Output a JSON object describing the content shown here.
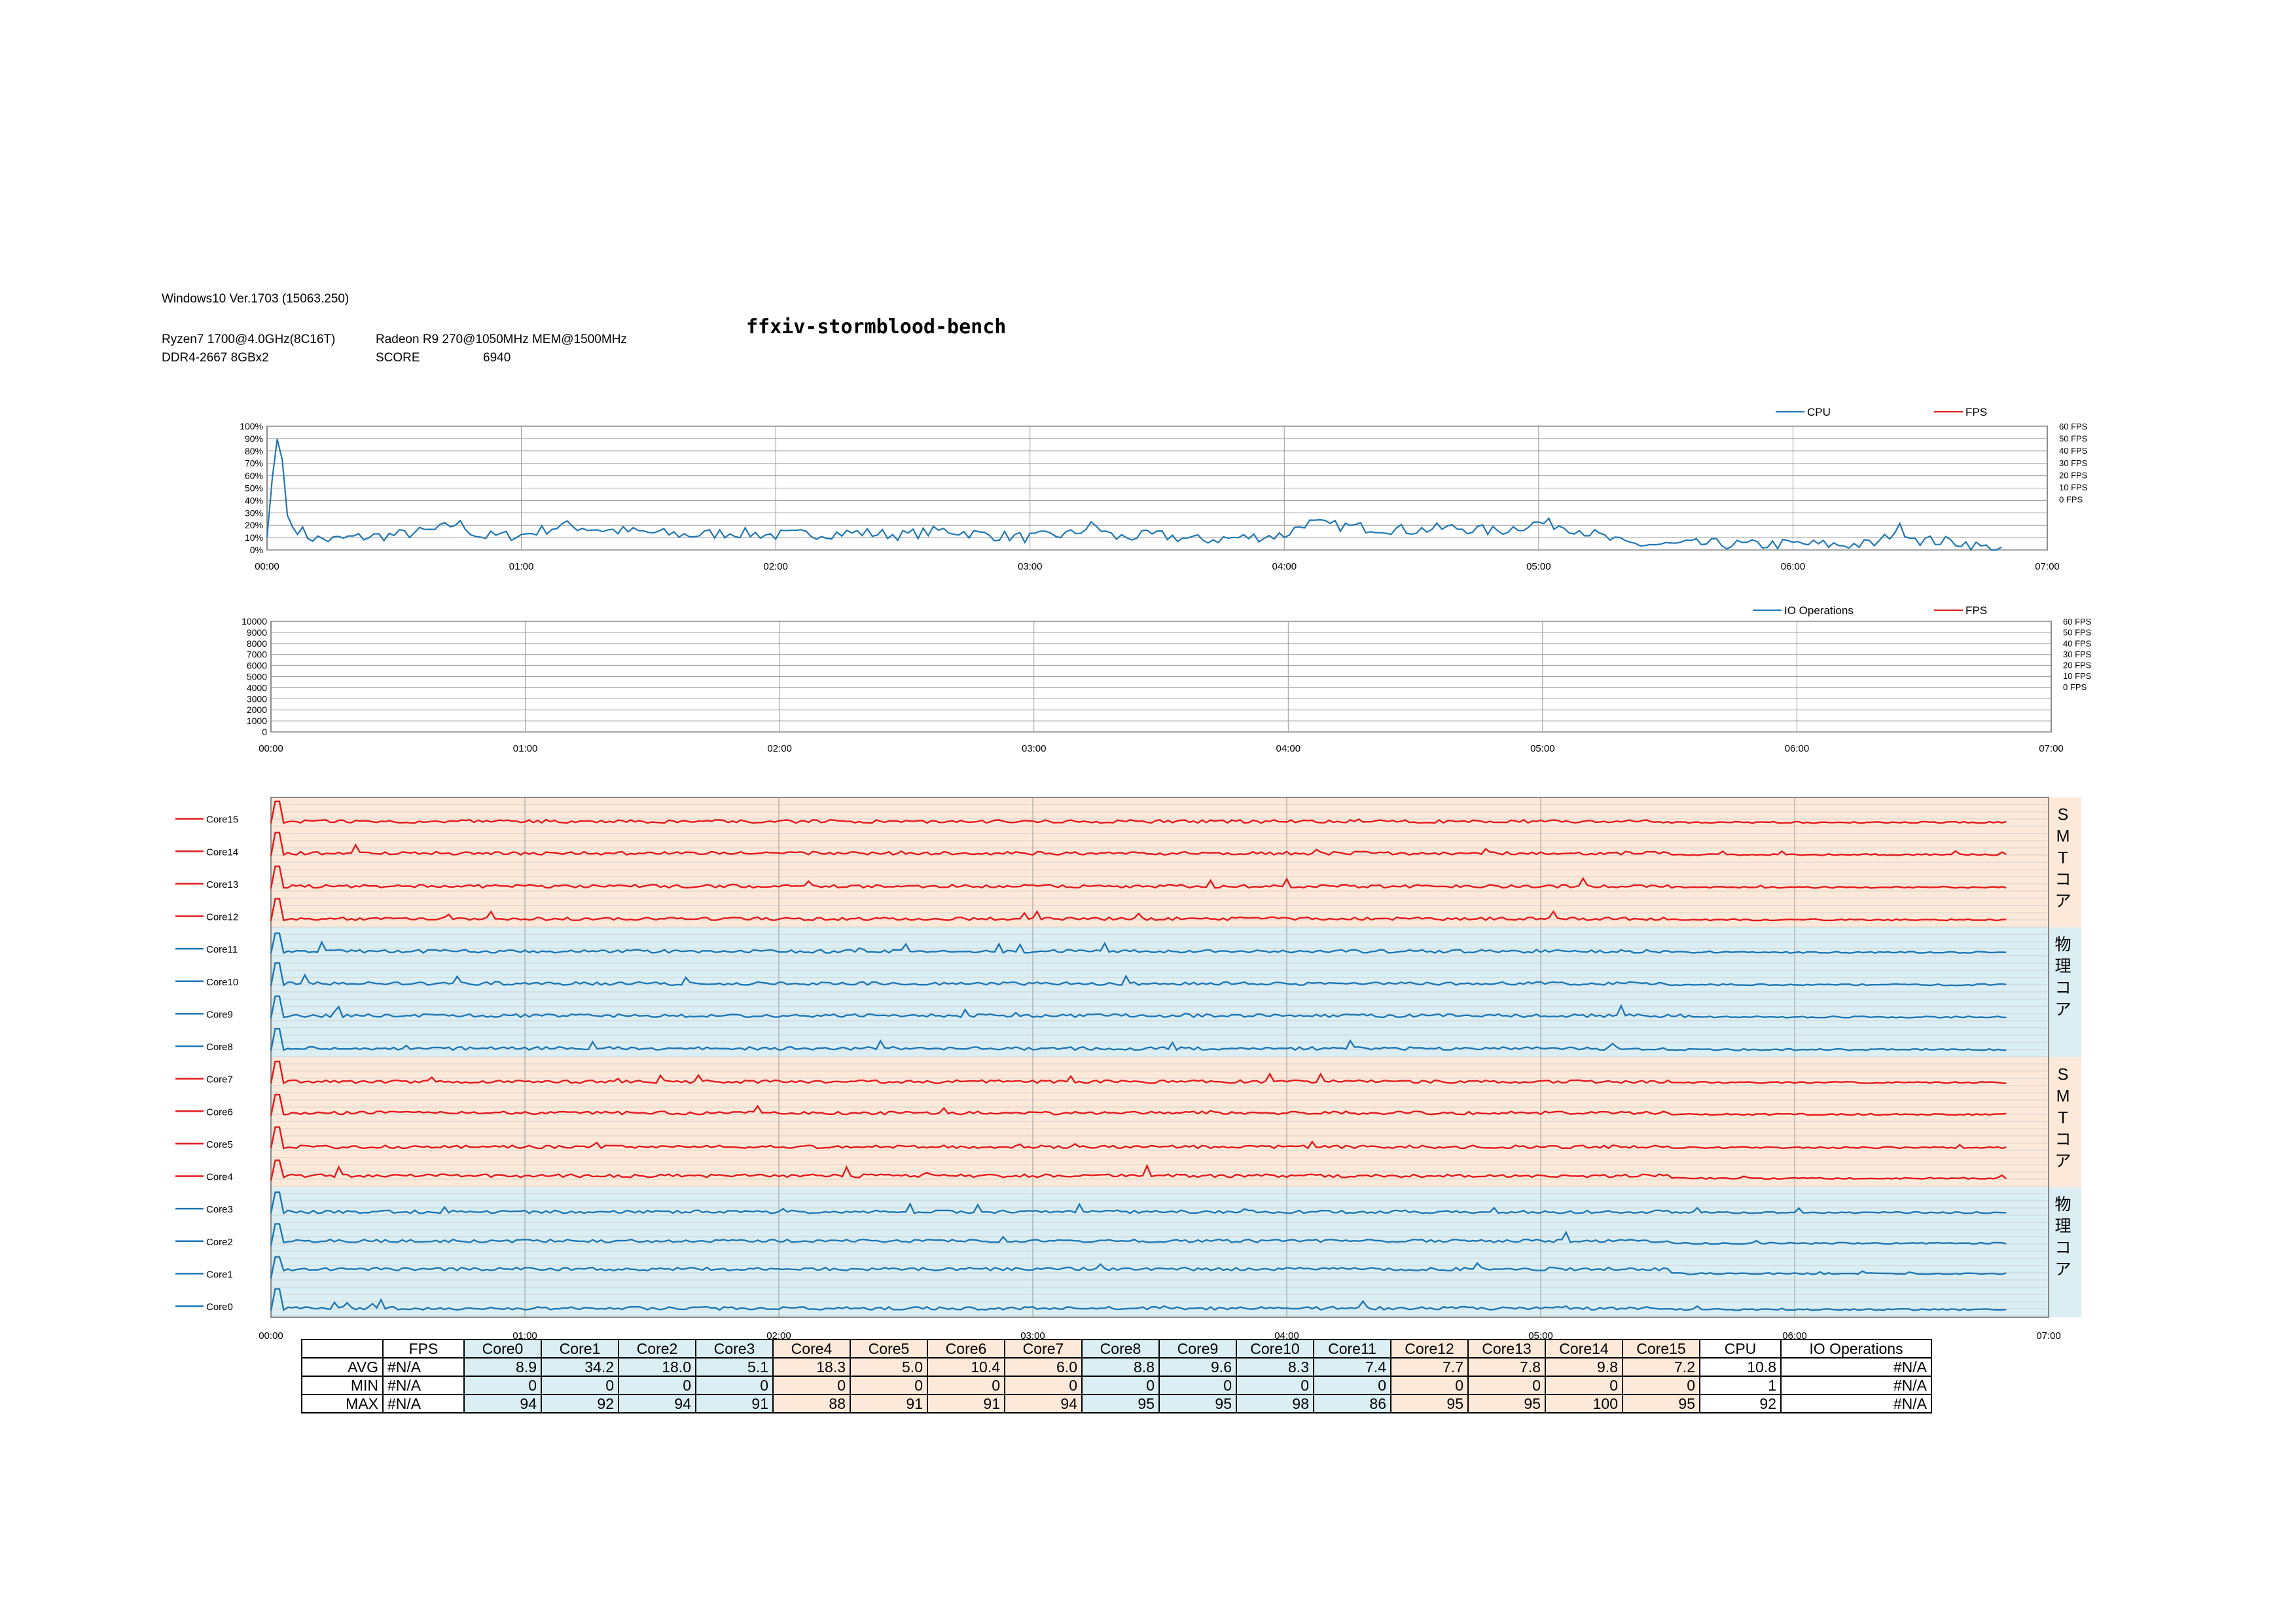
{
  "header": {
    "os": "Windows10  Ver.1703 (15063.250)",
    "cpu": "Ryzen7 1700@4.0GHz(8C16T)",
    "gpu": "Radeon R9 270@1050MHz MEM@1500MHz",
    "memory": "DDR4-2667 8GBx2",
    "score_label": "SCORE",
    "score_value": "6940",
    "title": "ffxiv-stormblood-bench"
  },
  "colors": {
    "blue": "#1f77b4",
    "red": "#e31a1c",
    "blue_band": "#daeef3",
    "orange_band": "#fde9d9",
    "grid": "#9a9a9a"
  },
  "x_ticks": [
    "00:00",
    "01:00",
    "02:00",
    "03:00",
    "04:00",
    "05:00",
    "06:00",
    "07:00"
  ],
  "band_labels": {
    "smt": [
      "S",
      "M",
      "T",
      "コ",
      "ア"
    ],
    "phys": [
      "物",
      "理",
      "コ",
      "ア"
    ]
  },
  "chart_data": [
    {
      "type": "line",
      "xlabel": "",
      "ylabel": "",
      "legend": [
        "CPU",
        "FPS"
      ],
      "y_ticks": [
        "100%",
        "90%",
        "80%",
        "70%",
        "60%",
        "50%",
        "40%",
        "30%",
        "20%",
        "10%",
        "0%"
      ],
      "y2_ticks": [
        "60 FPS",
        "50 FPS",
        "40 FPS",
        "30 FPS",
        "20 FPS",
        "10 FPS",
        "0 FPS"
      ],
      "ylim": [
        0,
        100
      ],
      "xlim_minutes": [
        0,
        420
      ],
      "series": [
        {
          "name": "CPU",
          "x_minutes": [
            0,
            2,
            3,
            4,
            5,
            8,
            10,
            15,
            20,
            30,
            40,
            45,
            50,
            60,
            70,
            80,
            90,
            100,
            110,
            120,
            130,
            140,
            150,
            160,
            170,
            180,
            190,
            195,
            200,
            210,
            220,
            230,
            240,
            245,
            250,
            260,
            270,
            280,
            290,
            300,
            305,
            310,
            320,
            330,
            340,
            350,
            360,
            370,
            380,
            385,
            390,
            400,
            405,
            410
          ],
          "values": [
            10,
            88,
            92,
            60,
            20,
            16,
            10,
            8,
            10,
            12,
            16,
            22,
            11,
            12,
            20,
            16,
            14,
            12,
            14,
            12,
            13,
            14,
            12,
            16,
            12,
            10,
            13,
            20,
            10,
            12,
            8,
            10,
            12,
            22,
            20,
            18,
            16,
            18,
            15,
            22,
            20,
            16,
            5,
            4,
            5,
            4,
            5,
            4,
            5,
            18,
            8,
            6,
            2,
            0
          ]
        },
        {
          "name": "FPS",
          "values": []
        }
      ]
    },
    {
      "type": "line",
      "xlabel": "",
      "ylabel": "",
      "legend": [
        "IO Operations",
        "FPS"
      ],
      "y_ticks": [
        "10000",
        "9000",
        "8000",
        "7000",
        "6000",
        "5000",
        "4000",
        "3000",
        "2000",
        "1000",
        "0"
      ],
      "y2_ticks": [
        "60 FPS",
        "50 FPS",
        "40 FPS",
        "30 FPS",
        "20 FPS",
        "10 FPS",
        "0 FPS"
      ],
      "ylim": [
        0,
        10000
      ],
      "series": [
        {
          "name": "IO Operations",
          "values": []
        },
        {
          "name": "FPS",
          "values": []
        }
      ]
    },
    {
      "type": "line",
      "xlim_minutes": [
        0,
        420
      ],
      "cores": [
        {
          "name": "Core15",
          "color": "red",
          "avg": 7.2,
          "max": 95
        },
        {
          "name": "Core14",
          "color": "red",
          "avg": 9.8,
          "max": 100
        },
        {
          "name": "Core13",
          "color": "red",
          "avg": 7.8,
          "max": 95
        },
        {
          "name": "Core12",
          "color": "red",
          "avg": 7.7,
          "max": 95
        },
        {
          "name": "Core11",
          "color": "blue",
          "avg": 7.4,
          "max": 86
        },
        {
          "name": "Core10",
          "color": "blue",
          "avg": 8.3,
          "max": 98
        },
        {
          "name": "Core9",
          "color": "blue",
          "avg": 9.6,
          "max": 95
        },
        {
          "name": "Core8",
          "color": "blue",
          "avg": 8.8,
          "max": 95
        },
        {
          "name": "Core7",
          "color": "red",
          "avg": 6.0,
          "max": 94
        },
        {
          "name": "Core6",
          "color": "red",
          "avg": 10.4,
          "max": 91
        },
        {
          "name": "Core5",
          "color": "red",
          "avg": 5.0,
          "max": 91
        },
        {
          "name": "Core4",
          "color": "red",
          "avg": 18.3,
          "max": 88
        },
        {
          "name": "Core3",
          "color": "blue",
          "avg": 5.1,
          "max": 91
        },
        {
          "name": "Core2",
          "color": "blue",
          "avg": 18.0,
          "max": 94
        },
        {
          "name": "Core1",
          "color": "blue",
          "avg": 34.2,
          "max": 92
        },
        {
          "name": "Core0",
          "color": "blue",
          "avg": 8.9,
          "max": 94
        }
      ]
    },
    {
      "type": "table",
      "columns": [
        "",
        "FPS",
        "Core0",
        "Core1",
        "Core2",
        "Core3",
        "Core4",
        "Core5",
        "Core6",
        "Core7",
        "Core8",
        "Core9",
        "Core10",
        "Core11",
        "Core12",
        "Core13",
        "Core14",
        "Core15",
        "CPU",
        "IO Operations"
      ],
      "column_tint": [
        "",
        "",
        "b",
        "b",
        "b",
        "b",
        "o",
        "o",
        "o",
        "o",
        "b",
        "b",
        "b",
        "b",
        "o",
        "o",
        "o",
        "o",
        "",
        ""
      ],
      "rows": [
        [
          "AVG",
          "#N/A",
          "8.9",
          "34.2",
          "18.0",
          "5.1",
          "18.3",
          "5.0",
          "10.4",
          "6.0",
          "8.8",
          "9.6",
          "8.3",
          "7.4",
          "7.7",
          "7.8",
          "9.8",
          "7.2",
          "10.8",
          "#N/A"
        ],
        [
          "MIN",
          "#N/A",
          "0",
          "0",
          "0",
          "0",
          "0",
          "0",
          "0",
          "0",
          "0",
          "0",
          "0",
          "0",
          "0",
          "0",
          "0",
          "0",
          "1",
          "#N/A"
        ],
        [
          "MAX",
          "#N/A",
          "94",
          "92",
          "94",
          "91",
          "88",
          "91",
          "91",
          "94",
          "95",
          "95",
          "98",
          "86",
          "95",
          "95",
          "100",
          "95",
          "92",
          "#N/A"
        ]
      ]
    }
  ]
}
